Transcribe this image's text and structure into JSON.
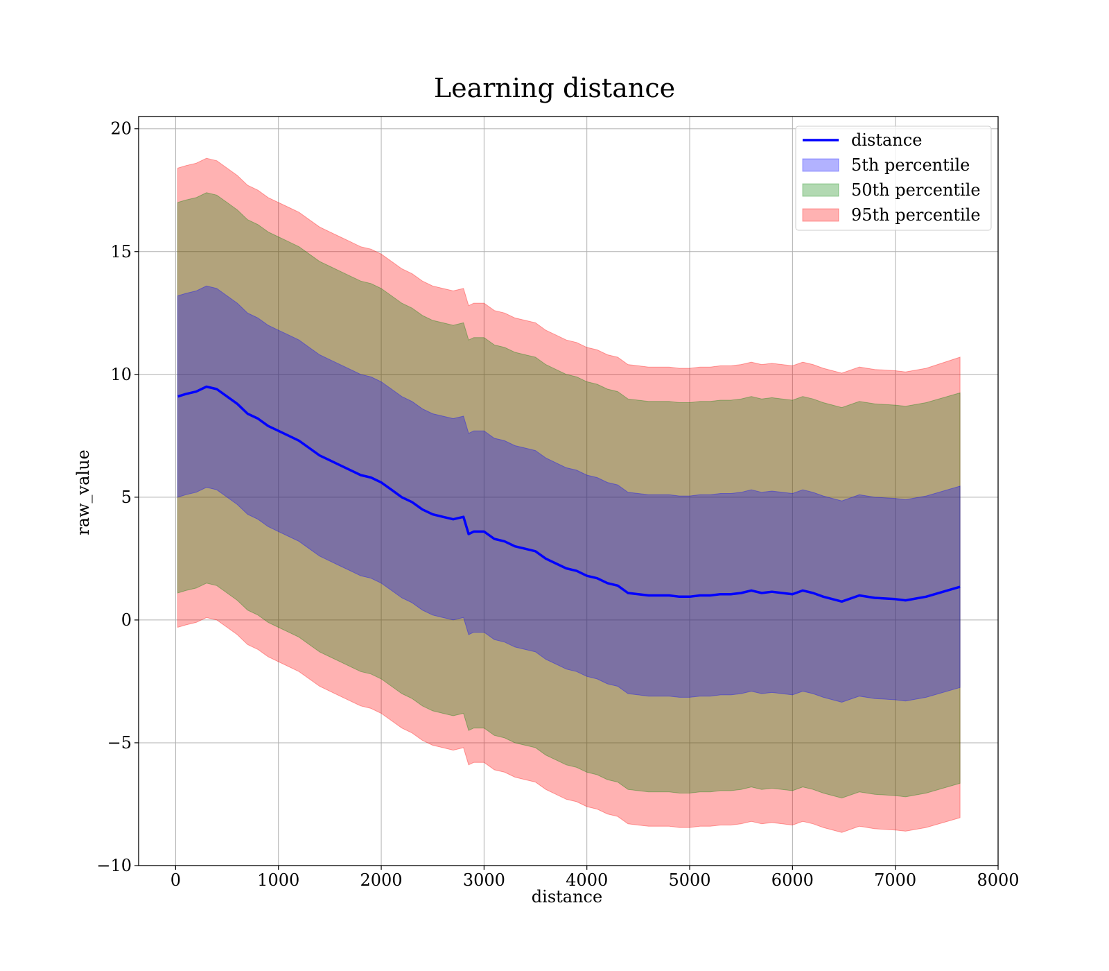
{
  "chart_data": {
    "type": "line",
    "title": "Learning distance",
    "xlabel": "distance",
    "ylabel": "raw_value",
    "xlim": [
      -360,
      8000
    ],
    "ylim": [
      -10,
      20.5
    ],
    "xticks": [
      0,
      1000,
      2000,
      3000,
      4000,
      5000,
      6000,
      7000,
      8000
    ],
    "xtick_labels": [
      "0",
      "1000",
      "2000",
      "3000",
      "4000",
      "5000",
      "6000",
      "7000",
      "8000"
    ],
    "yticks": [
      -10,
      -5,
      0,
      5,
      10,
      15,
      20
    ],
    "ytick_labels": [
      "−10",
      "−5",
      "0",
      "5",
      "10",
      "15",
      "20"
    ],
    "grid": true,
    "legend_position": "top-right",
    "legend": [
      "distance",
      "5th percentile",
      "50th percentile",
      "95th percentile"
    ],
    "colors": {
      "line": "#0000ff",
      "band_5th": "#0000ff",
      "band_50th": "#008000",
      "band_95th": "#ff0000"
    },
    "x": [
      20,
      100,
      200,
      300,
      400,
      500,
      600,
      700,
      800,
      900,
      1000,
      1100,
      1200,
      1300,
      1400,
      1500,
      1600,
      1700,
      1800,
      1900,
      2000,
      2100,
      2200,
      2300,
      2400,
      2500,
      2600,
      2700,
      2800,
      2850,
      2900,
      3000,
      3100,
      3200,
      3300,
      3400,
      3500,
      3600,
      3700,
      3800,
      3900,
      4000,
      4100,
      4200,
      4300,
      4400,
      4500,
      4600,
      4700,
      4800,
      4900,
      5000,
      5100,
      5200,
      5300,
      5400,
      5500,
      5600,
      5700,
      5800,
      5900,
      6000,
      6100,
      6200,
      6300,
      6480,
      6650,
      6800,
      7000,
      7100,
      7300,
      7630
    ],
    "series": [
      {
        "name": "distance",
        "values": [
          9.1,
          9.2,
          9.3,
          9.5,
          9.4,
          9.1,
          8.8,
          8.4,
          8.2,
          7.9,
          7.7,
          7.5,
          7.3,
          7.0,
          6.7,
          6.5,
          6.3,
          6.1,
          5.9,
          5.8,
          5.6,
          5.3,
          5.0,
          4.8,
          4.5,
          4.3,
          4.2,
          4.1,
          4.2,
          3.5,
          3.6,
          3.6,
          3.3,
          3.2,
          3.0,
          2.9,
          2.8,
          2.5,
          2.3,
          2.1,
          2.0,
          1.8,
          1.7,
          1.5,
          1.4,
          1.1,
          1.05,
          1.0,
          1.0,
          1.0,
          0.95,
          0.95,
          1.0,
          1.0,
          1.05,
          1.05,
          1.1,
          1.2,
          1.1,
          1.15,
          1.1,
          1.05,
          1.2,
          1.1,
          0.95,
          0.75,
          1.0,
          0.9,
          0.85,
          0.8,
          0.95,
          1.35
        ]
      },
      {
        "name": "5th percentile",
        "values_low": [
          5.0,
          5.1,
          5.2,
          5.4,
          5.3,
          5.0,
          4.7,
          4.3,
          4.1,
          3.8,
          3.6,
          3.4,
          3.2,
          2.9,
          2.6,
          2.4,
          2.2,
          2.0,
          1.8,
          1.7,
          1.5,
          1.2,
          0.9,
          0.7,
          0.4,
          0.2,
          0.1,
          0.0,
          0.1,
          -0.6,
          -0.5,
          -0.5,
          -0.8,
          -0.9,
          -1.1,
          -1.2,
          -1.3,
          -1.6,
          -1.8,
          -2.0,
          -2.1,
          -2.3,
          -2.4,
          -2.6,
          -2.7,
          -3.0,
          -3.05,
          -3.1,
          -3.1,
          -3.1,
          -3.15,
          -3.15,
          -3.1,
          -3.1,
          -3.05,
          -3.05,
          -3.0,
          -2.9,
          -3.0,
          -2.95,
          -3.0,
          -3.05,
          -2.9,
          -3.0,
          -3.15,
          -3.35,
          -3.1,
          -3.2,
          -3.25,
          -3.3,
          -3.15,
          -2.75
        ],
        "values_high": [
          13.2,
          13.3,
          13.4,
          13.6,
          13.5,
          13.2,
          12.9,
          12.5,
          12.3,
          12.0,
          11.8,
          11.6,
          11.4,
          11.1,
          10.8,
          10.6,
          10.4,
          10.2,
          10.0,
          9.9,
          9.7,
          9.4,
          9.1,
          8.9,
          8.6,
          8.4,
          8.3,
          8.2,
          8.3,
          7.6,
          7.7,
          7.7,
          7.4,
          7.3,
          7.1,
          7.0,
          6.9,
          6.6,
          6.4,
          6.2,
          6.1,
          5.9,
          5.8,
          5.6,
          5.5,
          5.2,
          5.15,
          5.1,
          5.1,
          5.1,
          5.05,
          5.05,
          5.1,
          5.1,
          5.15,
          5.15,
          5.2,
          5.3,
          5.2,
          5.25,
          5.2,
          5.15,
          5.3,
          5.2,
          5.05,
          4.85,
          5.1,
          5.0,
          4.95,
          4.9,
          5.05,
          5.45
        ]
      },
      {
        "name": "50th percentile",
        "values_low": [
          1.1,
          1.2,
          1.3,
          1.5,
          1.4,
          1.1,
          0.8,
          0.4,
          0.2,
          -0.1,
          -0.3,
          -0.5,
          -0.7,
          -1.0,
          -1.3,
          -1.5,
          -1.7,
          -1.9,
          -2.1,
          -2.2,
          -2.4,
          -2.7,
          -3.0,
          -3.2,
          -3.5,
          -3.7,
          -3.8,
          -3.9,
          -3.8,
          -4.5,
          -4.4,
          -4.4,
          -4.7,
          -4.8,
          -5.0,
          -5.1,
          -5.2,
          -5.5,
          -5.7,
          -5.9,
          -6.0,
          -6.2,
          -6.3,
          -6.5,
          -6.6,
          -6.9,
          -6.95,
          -7.0,
          -7.0,
          -7.0,
          -7.05,
          -7.05,
          -7.0,
          -7.0,
          -6.95,
          -6.95,
          -6.9,
          -6.8,
          -6.9,
          -6.85,
          -6.9,
          -6.95,
          -6.8,
          -6.9,
          -7.05,
          -7.25,
          -7.0,
          -7.1,
          -7.15,
          -7.2,
          -7.05,
          -6.65
        ],
        "values_high": [
          17.0,
          17.1,
          17.2,
          17.4,
          17.3,
          17.0,
          16.7,
          16.3,
          16.1,
          15.8,
          15.6,
          15.4,
          15.2,
          14.9,
          14.6,
          14.4,
          14.2,
          14.0,
          13.8,
          13.7,
          13.5,
          13.2,
          12.9,
          12.7,
          12.4,
          12.2,
          12.1,
          12.0,
          12.1,
          11.4,
          11.5,
          11.5,
          11.2,
          11.1,
          10.9,
          10.8,
          10.7,
          10.4,
          10.2,
          10.0,
          9.9,
          9.7,
          9.6,
          9.4,
          9.3,
          9.0,
          8.95,
          8.9,
          8.9,
          8.9,
          8.85,
          8.85,
          8.9,
          8.9,
          8.95,
          8.95,
          9.0,
          9.1,
          9.0,
          9.05,
          9.0,
          8.95,
          9.1,
          9.0,
          8.85,
          8.65,
          8.9,
          8.8,
          8.75,
          8.7,
          8.85,
          9.25
        ]
      },
      {
        "name": "95th percentile",
        "values_low": [
          -0.3,
          -0.2,
          -0.1,
          0.1,
          0.0,
          -0.3,
          -0.6,
          -1.0,
          -1.2,
          -1.5,
          -1.7,
          -1.9,
          -2.1,
          -2.4,
          -2.7,
          -2.9,
          -3.1,
          -3.3,
          -3.5,
          -3.6,
          -3.8,
          -4.1,
          -4.4,
          -4.6,
          -4.9,
          -5.1,
          -5.2,
          -5.3,
          -5.2,
          -5.9,
          -5.8,
          -5.8,
          -6.1,
          -6.2,
          -6.4,
          -6.5,
          -6.6,
          -6.9,
          -7.1,
          -7.3,
          -7.4,
          -7.6,
          -7.7,
          -7.9,
          -8.0,
          -8.3,
          -8.35,
          -8.4,
          -8.4,
          -8.4,
          -8.45,
          -8.45,
          -8.4,
          -8.4,
          -8.35,
          -8.35,
          -8.3,
          -8.2,
          -8.3,
          -8.25,
          -8.3,
          -8.35,
          -8.2,
          -8.3,
          -8.45,
          -8.65,
          -8.4,
          -8.5,
          -8.55,
          -8.6,
          -8.45,
          -8.05
        ],
        "values_high": [
          18.4,
          18.5,
          18.6,
          18.8,
          18.7,
          18.4,
          18.1,
          17.7,
          17.5,
          17.2,
          17.0,
          16.8,
          16.6,
          16.3,
          16.0,
          15.8,
          15.6,
          15.4,
          15.2,
          15.1,
          14.9,
          14.6,
          14.3,
          14.1,
          13.8,
          13.6,
          13.5,
          13.4,
          13.5,
          12.8,
          12.9,
          12.9,
          12.6,
          12.5,
          12.3,
          12.2,
          12.1,
          11.8,
          11.6,
          11.4,
          11.3,
          11.1,
          11.0,
          10.8,
          10.7,
          10.4,
          10.35,
          10.3,
          10.3,
          10.3,
          10.25,
          10.25,
          10.3,
          10.3,
          10.35,
          10.35,
          10.4,
          10.5,
          10.4,
          10.45,
          10.4,
          10.35,
          10.5,
          10.4,
          10.25,
          10.05,
          10.3,
          10.2,
          10.15,
          10.1,
          10.25,
          10.7
        ]
      }
    ]
  }
}
